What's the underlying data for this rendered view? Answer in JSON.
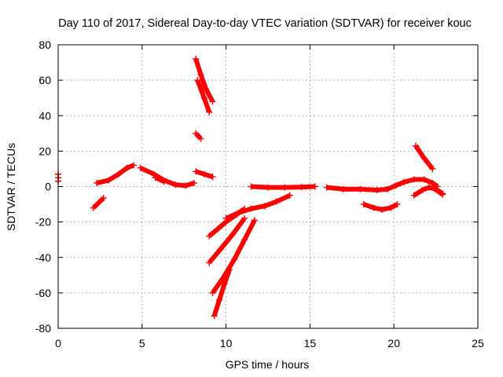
{
  "chart_data": {
    "type": "scatter",
    "title": "Day 110 of 2017, Sidereal Day-to-day VTEC variation (SDTVAR) for receiver kouc",
    "xlabel": "GPS time / hours",
    "ylabel": "SDTVAR / TECUs",
    "xlim": [
      0,
      25
    ],
    "ylim": [
      -80,
      80
    ],
    "xticks": [
      0,
      5,
      10,
      15,
      20,
      25
    ],
    "yticks": [
      -80,
      -60,
      -40,
      -20,
      0,
      20,
      40,
      60,
      80
    ],
    "grid": true,
    "marker_color": "#ff0000",
    "series": [
      {
        "segments": [
          [
            [
              2.1,
              -12
            ],
            [
              2.7,
              -6.5
            ]
          ],
          [
            [
              2.3,
              2
            ],
            [
              3.0,
              3.5
            ],
            [
              3.6,
              7
            ],
            [
              4.1,
              10.5
            ],
            [
              4.5,
              12
            ]
          ],
          [
            [
              4.9,
              10.5
            ],
            [
              5.7,
              7
            ],
            [
              6.3,
              3.5
            ],
            [
              7.0,
              1
            ],
            [
              7.6,
              0.5
            ],
            [
              8.1,
              2
            ]
          ],
          [
            [
              5.8,
              5
            ],
            [
              6.3,
              2.8
            ]
          ],
          [
            [
              8.2,
              72
            ],
            [
              8.5,
              63
            ],
            [
              8.8,
              55
            ],
            [
              9.2,
              48
            ]
          ],
          [
            [
              8.3,
              60
            ],
            [
              8.7,
              50
            ],
            [
              9.0,
              42
            ]
          ],
          [
            [
              8.2,
              30
            ],
            [
              8.5,
              27
            ]
          ],
          [
            [
              8.2,
              8.5
            ],
            [
              8.7,
              7
            ],
            [
              9.2,
              5.5
            ]
          ],
          [
            [
              9.0,
              -28
            ],
            [
              9.5,
              -24
            ],
            [
              10.0,
              -20
            ],
            [
              10.6,
              -16
            ],
            [
              11.1,
              -12.5
            ]
          ],
          [
            [
              9.0,
              -43
            ],
            [
              9.7,
              -35
            ],
            [
              10.4,
              -27
            ],
            [
              11.1,
              -18
            ]
          ],
          [
            [
              9.2,
              -60
            ],
            [
              9.8,
              -52
            ],
            [
              10.5,
              -41
            ],
            [
              11.1,
              -30
            ],
            [
              11.7,
              -19
            ]
          ],
          [
            [
              9.3,
              -73
            ],
            [
              9.6,
              -64
            ],
            [
              9.9,
              -55
            ],
            [
              10.2,
              -47
            ]
          ],
          [
            [
              10.0,
              -18
            ],
            [
              10.7,
              -15
            ],
            [
              11.5,
              -12.5
            ],
            [
              12.3,
              -11
            ],
            [
              13.0,
              -8.5
            ],
            [
              13.8,
              -5
            ]
          ],
          [
            [
              11.5,
              0
            ],
            [
              12.5,
              -0.5
            ],
            [
              13.5,
              -0.5
            ],
            [
              14.5,
              -0.3
            ],
            [
              15.3,
              0
            ]
          ],
          [
            [
              16.0,
              -0.5
            ],
            [
              17.0,
              -1.5
            ],
            [
              18.0,
              -1.5
            ],
            [
              19.0,
              -2
            ],
            [
              19.6,
              -1.5
            ],
            [
              20.1,
              0.5
            ],
            [
              20.6,
              2.5
            ],
            [
              21.2,
              4
            ],
            [
              21.8,
              4
            ],
            [
              22.3,
              2
            ],
            [
              22.6,
              0
            ]
          ],
          [
            [
              18.2,
              -10
            ],
            [
              18.8,
              -12
            ],
            [
              19.3,
              -13
            ],
            [
              19.8,
              -12
            ],
            [
              20.2,
              -10
            ]
          ],
          [
            [
              21.2,
              -5
            ],
            [
              21.7,
              -2
            ],
            [
              22.1,
              -0.5
            ],
            [
              22.5,
              -1.5
            ],
            [
              22.9,
              -4
            ]
          ],
          [
            [
              21.3,
              23
            ],
            [
              21.8,
              16
            ],
            [
              22.3,
              10
            ]
          ],
          [
            [
              22.4,
              -1
            ],
            [
              22.9,
              -4.5
            ]
          ]
        ]
      },
      {
        "points": [
          [
            0,
            7
          ],
          [
            0,
            5
          ],
          [
            0,
            3
          ]
        ]
      }
    ]
  }
}
